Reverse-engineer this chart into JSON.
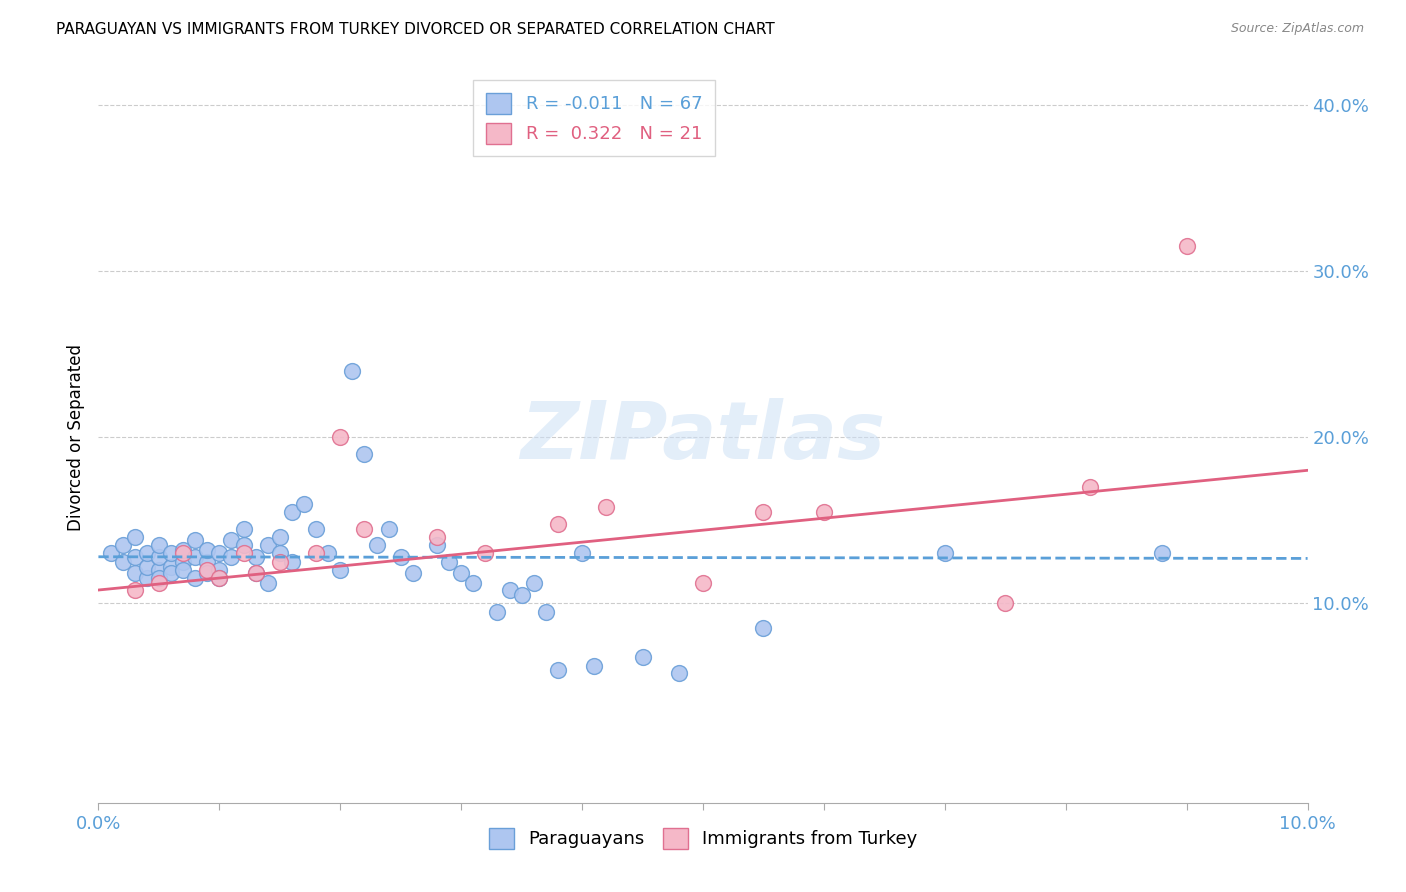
{
  "title": "PARAGUAYAN VS IMMIGRANTS FROM TURKEY DIVORCED OR SEPARATED CORRELATION CHART",
  "source": "Source: ZipAtlas.com",
  "ylabel": "Divorced or Separated",
  "xmin": 0.0,
  "xmax": 0.1,
  "ymin": -0.02,
  "ymax": 0.42,
  "yticks": [
    0.1,
    0.2,
    0.3,
    0.4
  ],
  "ytick_labels": [
    "10.0%",
    "20.0%",
    "30.0%",
    "40.0%"
  ],
  "watermark_text": "ZIPatlas",
  "paraguayan_color": "#aec6f0",
  "paraguayan_edge_color": "#6a9fd8",
  "turkey_color": "#f5b8c8",
  "turkey_edge_color": "#e07090",
  "paraguayan_line_color": "#5a9fd8",
  "turkey_line_color": "#e06080",
  "paraguayan_scatter_x": [
    0.001,
    0.002,
    0.002,
    0.003,
    0.003,
    0.003,
    0.004,
    0.004,
    0.004,
    0.005,
    0.005,
    0.005,
    0.005,
    0.006,
    0.006,
    0.006,
    0.007,
    0.007,
    0.007,
    0.008,
    0.008,
    0.008,
    0.009,
    0.009,
    0.009,
    0.01,
    0.01,
    0.01,
    0.011,
    0.011,
    0.012,
    0.012,
    0.013,
    0.013,
    0.014,
    0.014,
    0.015,
    0.015,
    0.016,
    0.016,
    0.017,
    0.018,
    0.019,
    0.02,
    0.021,
    0.022,
    0.023,
    0.024,
    0.025,
    0.026,
    0.028,
    0.029,
    0.03,
    0.031,
    0.033,
    0.034,
    0.035,
    0.036,
    0.037,
    0.038,
    0.04,
    0.041,
    0.045,
    0.048,
    0.055,
    0.07,
    0.088
  ],
  "paraguayan_scatter_y": [
    0.13,
    0.125,
    0.135,
    0.118,
    0.128,
    0.14,
    0.115,
    0.122,
    0.13,
    0.12,
    0.128,
    0.115,
    0.135,
    0.122,
    0.13,
    0.118,
    0.125,
    0.132,
    0.12,
    0.128,
    0.115,
    0.138,
    0.125,
    0.132,
    0.118,
    0.13,
    0.12,
    0.115,
    0.138,
    0.128,
    0.145,
    0.135,
    0.128,
    0.118,
    0.135,
    0.112,
    0.14,
    0.13,
    0.155,
    0.125,
    0.16,
    0.145,
    0.13,
    0.12,
    0.24,
    0.19,
    0.135,
    0.145,
    0.128,
    0.118,
    0.135,
    0.125,
    0.118,
    0.112,
    0.095,
    0.108,
    0.105,
    0.112,
    0.095,
    0.06,
    0.13,
    0.062,
    0.068,
    0.058,
    0.085,
    0.13,
    0.13
  ],
  "turkey_scatter_x": [
    0.003,
    0.005,
    0.007,
    0.009,
    0.01,
    0.012,
    0.013,
    0.015,
    0.018,
    0.02,
    0.022,
    0.028,
    0.032,
    0.038,
    0.042,
    0.05,
    0.055,
    0.06,
    0.075,
    0.082,
    0.09
  ],
  "turkey_scatter_y": [
    0.108,
    0.112,
    0.13,
    0.12,
    0.115,
    0.13,
    0.118,
    0.125,
    0.13,
    0.2,
    0.145,
    0.14,
    0.13,
    0.148,
    0.158,
    0.112,
    0.155,
    0.155,
    0.1,
    0.17,
    0.315
  ],
  "paraguayan_trend_x": [
    0.0,
    0.1
  ],
  "paraguayan_trend_y": [
    0.128,
    0.127
  ],
  "turkey_trend_x": [
    0.0,
    0.1
  ],
  "turkey_trend_y": [
    0.108,
    0.18
  ],
  "legend1_label": "R = -0.011   N = 67",
  "legend2_label": "R =  0.322   N = 21",
  "legend_color1": "#5a9fd8",
  "legend_color2": "#e06080",
  "bottom_legend_label1": "Paraguayans",
  "bottom_legend_label2": "Immigrants from Turkey"
}
